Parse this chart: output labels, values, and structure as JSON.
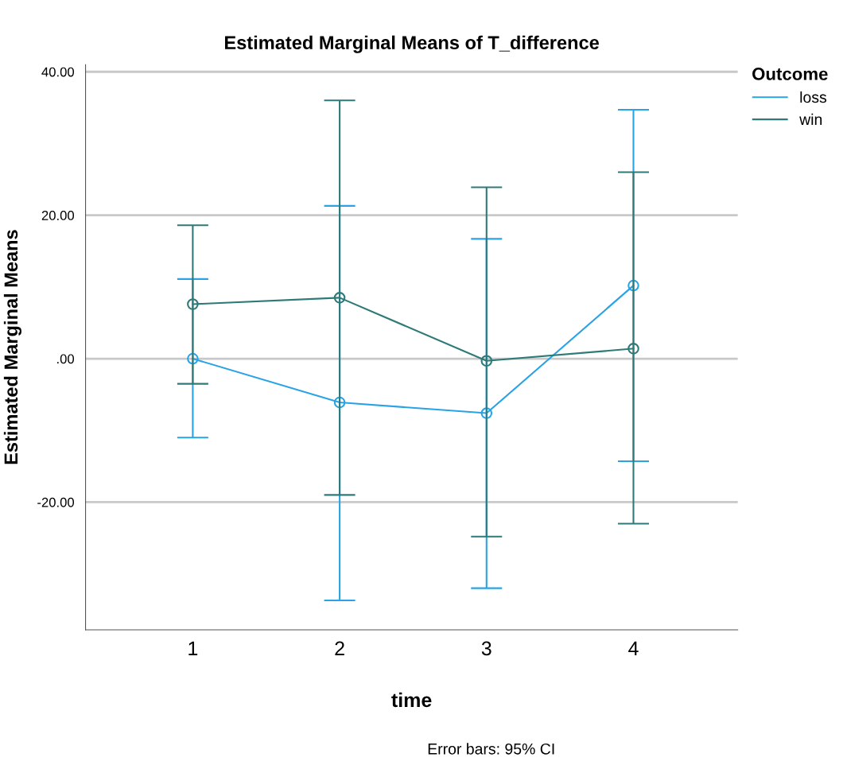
{
  "chart_data": {
    "type": "line",
    "title": "Estimated Marginal Means of T_difference",
    "xlabel": "time",
    "ylabel": "Estimated Marginal Means",
    "legend_title": "Outcome",
    "categories": [
      "1",
      "2",
      "3",
      "4"
    ],
    "series": [
      {
        "name": "loss",
        "color": "#2aa3e6",
        "values": [
          0.0,
          -6.1,
          -7.6,
          10.2
        ],
        "errors": [
          [
            -11.0,
            11.1
          ],
          [
            -33.7,
            21.3
          ],
          [
            -32.0,
            16.7
          ],
          [
            -14.3,
            34.7
          ]
        ]
      },
      {
        "name": "win",
        "color": "#2e7a78",
        "values": [
          7.6,
          8.5,
          -0.3,
          1.4
        ],
        "errors": [
          [
            -3.5,
            18.6
          ],
          [
            -19.0,
            36.0
          ],
          [
            -24.8,
            23.9
          ],
          [
            -23.0,
            26.0
          ]
        ]
      }
    ],
    "ylim": [
      -37.8,
      41
    ],
    "yticks": [
      {
        "value": -20,
        "label": "-20.00"
      },
      {
        "value": 0,
        "label": ".00"
      },
      {
        "value": 20,
        "label": "20.00"
      },
      {
        "value": 40,
        "label": "40.00"
      }
    ],
    "grid": "y",
    "legend": "top right",
    "marker": "circle",
    "line_style": "solid",
    "annotations": [
      "Error bars: 95% CI"
    ]
  }
}
